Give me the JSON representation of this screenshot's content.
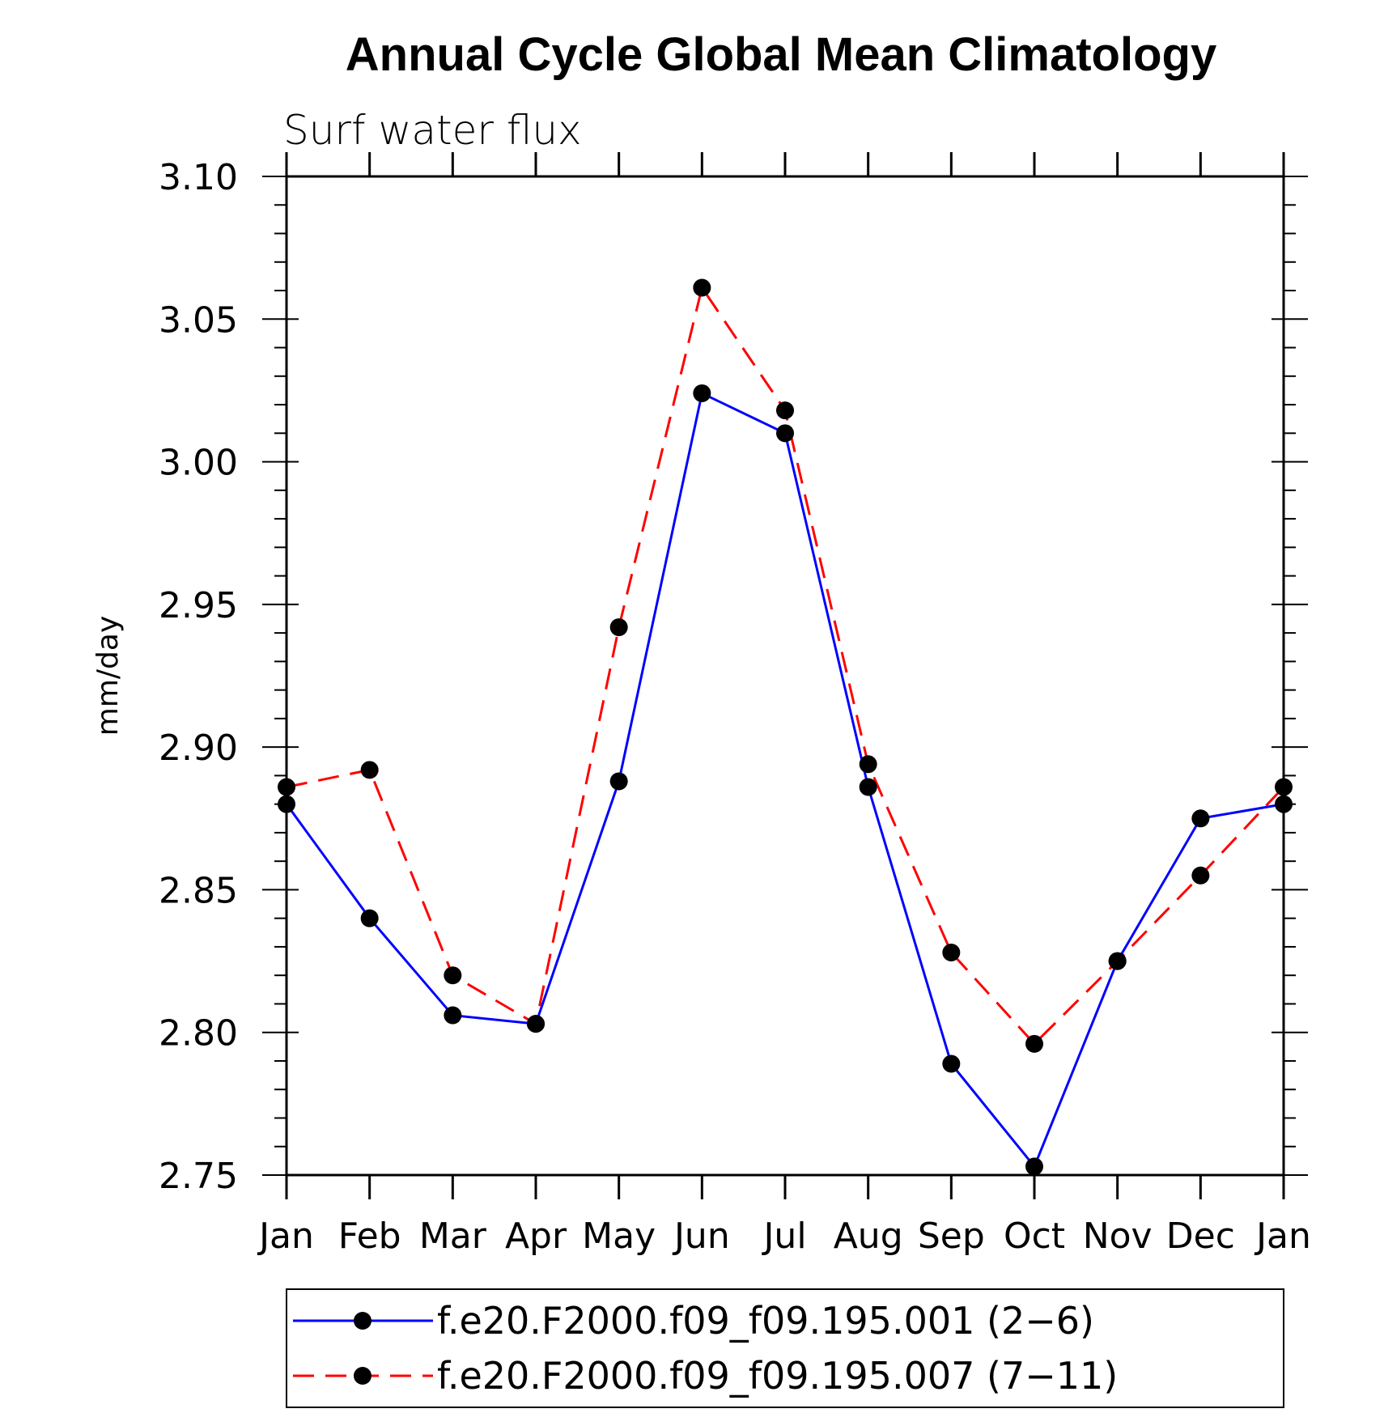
{
  "chart_data": {
    "type": "line",
    "title": "Annual Cycle Global Mean Climatology",
    "subtitle": "Surf water flux",
    "xlabel": "",
    "ylabel": "mm/day",
    "categories": [
      "Jan",
      "Feb",
      "Mar",
      "Apr",
      "May",
      "Jun",
      "Jul",
      "Aug",
      "Sep",
      "Oct",
      "Nov",
      "Dec",
      "Jan"
    ],
    "ylim": [
      2.75,
      3.1
    ],
    "yticks": [
      "3.10",
      "3.05",
      "3.00",
      "2.95",
      "2.90",
      "2.85",
      "2.80",
      "2.75"
    ],
    "grid": false,
    "legend_position": "bottom",
    "series": [
      {
        "name": "f.e20.F2000.f09_f09.195.001 (2−6)",
        "color": "#0000ff",
        "style": "solid",
        "marker": "filled-circle",
        "values": [
          2.88,
          2.84,
          2.806,
          2.803,
          2.888,
          3.024,
          3.01,
          2.886,
          2.789,
          2.753,
          2.825,
          2.875,
          2.88
        ]
      },
      {
        "name": "f.e20.F2000.f09_f09.195.007 (7−11)",
        "color": "#ff0000",
        "style": "dashed",
        "marker": "filled-circle",
        "values": [
          2.886,
          2.892,
          2.82,
          2.803,
          2.942,
          3.061,
          3.018,
          2.894,
          2.828,
          2.796,
          2.825,
          2.855,
          2.886
        ]
      }
    ]
  }
}
